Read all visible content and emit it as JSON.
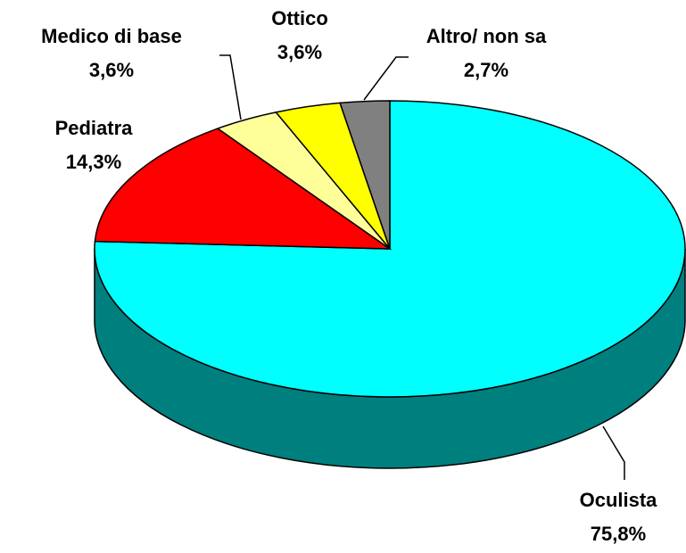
{
  "chart_data": {
    "type": "pie",
    "categories": [
      "Oculista",
      "Pediatra",
      "Medico di base",
      "Ottico",
      "Altro/ non sa"
    ],
    "values": [
      75.8,
      14.3,
      3.6,
      3.6,
      2.7
    ],
    "value_labels": [
      "75,8%",
      "14,3%",
      "3,6%",
      "3,6%",
      "2,7%"
    ],
    "colors": [
      "#00ffff",
      "#ff0000",
      "#ffff99",
      "#ffff00",
      "#808080"
    ]
  }
}
